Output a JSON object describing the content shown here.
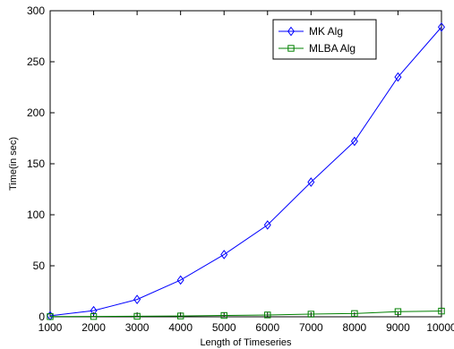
{
  "chart_data": {
    "type": "line",
    "title": "",
    "xlabel": "Length of Timeseries",
    "ylabel": "Time(in sec)",
    "x": [
      1000,
      2000,
      3000,
      4000,
      5000,
      6000,
      7000,
      8000,
      9000,
      10000
    ],
    "xlim": [
      1000,
      10000
    ],
    "ylim": [
      0,
      300
    ],
    "x_ticks": [
      "1000",
      "2000",
      "3000",
      "4000",
      "5000",
      "6000",
      "7000",
      "8000",
      "9000",
      "10000"
    ],
    "y_ticks": [
      "0",
      "50",
      "100",
      "150",
      "200",
      "250",
      "300"
    ],
    "grid": false,
    "legend_position": "top-right",
    "series": [
      {
        "name": "MK Alg",
        "color": "#0000ff",
        "marker": "diamond",
        "values": [
          1,
          6,
          17,
          36,
          61,
          90,
          132,
          172,
          235,
          284
        ]
      },
      {
        "name": "MLBA Alg",
        "color": "#008000",
        "marker": "square",
        "values": [
          0.2,
          0.3,
          0.5,
          0.8,
          1.3,
          1.8,
          2.6,
          3.2,
          5.1,
          5.6
        ]
      }
    ]
  }
}
